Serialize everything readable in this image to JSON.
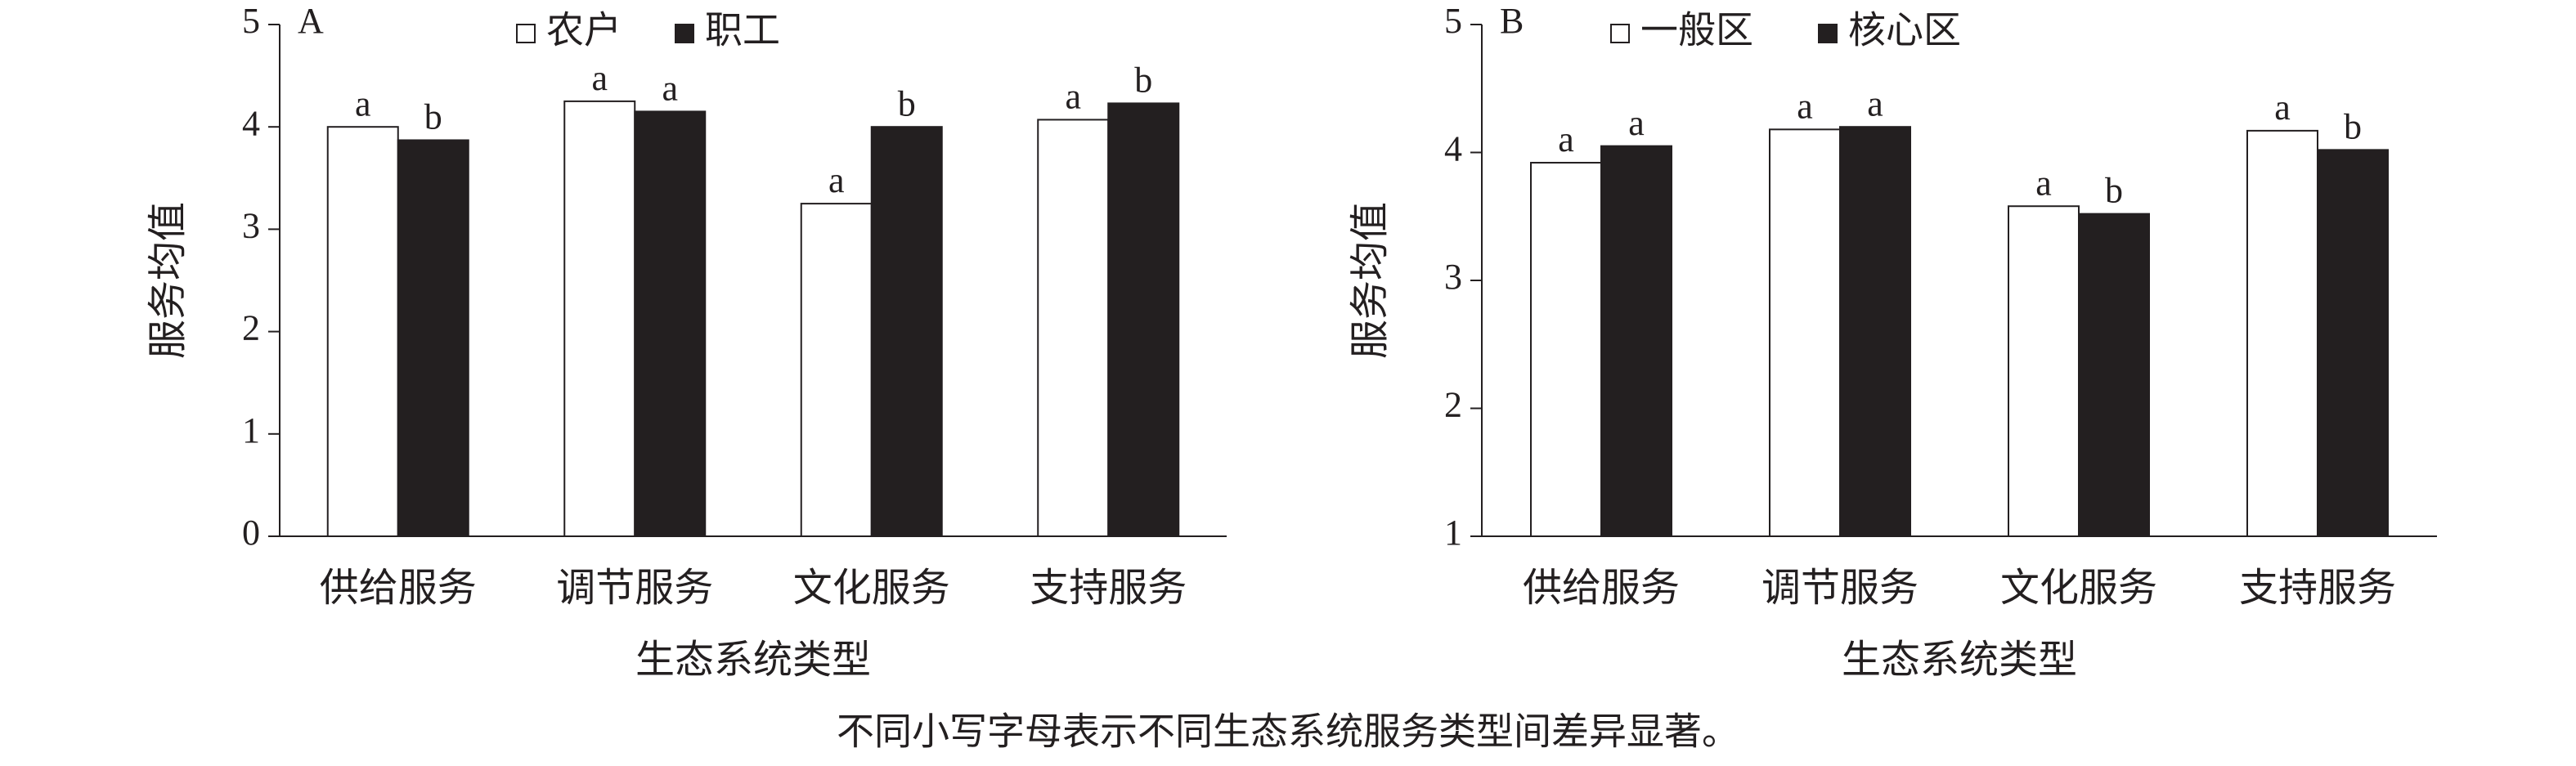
{
  "chart_data": [
    {
      "type": "bar",
      "panel": "A",
      "y_label": "服务均值",
      "x_label": "生态系统类型",
      "categories": [
        "供给服务",
        "调节服务",
        "文化服务",
        "支持服务"
      ],
      "series": [
        {
          "name": "农户",
          "color": "#ffffff",
          "values": [
            4.0,
            4.25,
            3.25,
            4.07
          ],
          "letters": [
            "a",
            "a",
            "a",
            "a"
          ]
        },
        {
          "name": "职工",
          "color": "#231f20",
          "values": [
            3.87,
            4.15,
            4.0,
            4.23
          ],
          "letters": [
            "b",
            "a",
            "b",
            "b"
          ]
        }
      ],
      "ylim": [
        0,
        5
      ],
      "yticks": [
        0,
        1,
        2,
        3,
        4,
        5
      ]
    },
    {
      "type": "bar",
      "panel": "B",
      "y_label": "服务均值",
      "x_label": "生态系统类型",
      "categories": [
        "供给服务",
        "调节服务",
        "文化服务",
        "支持服务"
      ],
      "series": [
        {
          "name": "一般区",
          "color": "#ffffff",
          "values": [
            3.92,
            4.18,
            3.58,
            4.17
          ],
          "letters": [
            "a",
            "a",
            "a",
            "a"
          ]
        },
        {
          "name": "核心区",
          "color": "#231f20",
          "values": [
            4.05,
            4.2,
            3.52,
            4.02
          ],
          "letters": [
            "a",
            "a",
            "b",
            "b"
          ]
        }
      ],
      "ylim": [
        1,
        5
      ],
      "yticks": [
        1,
        2,
        3,
        4,
        5
      ]
    }
  ],
  "note": "不同小写字母表示不同生态系统服务类型间差异显著。"
}
